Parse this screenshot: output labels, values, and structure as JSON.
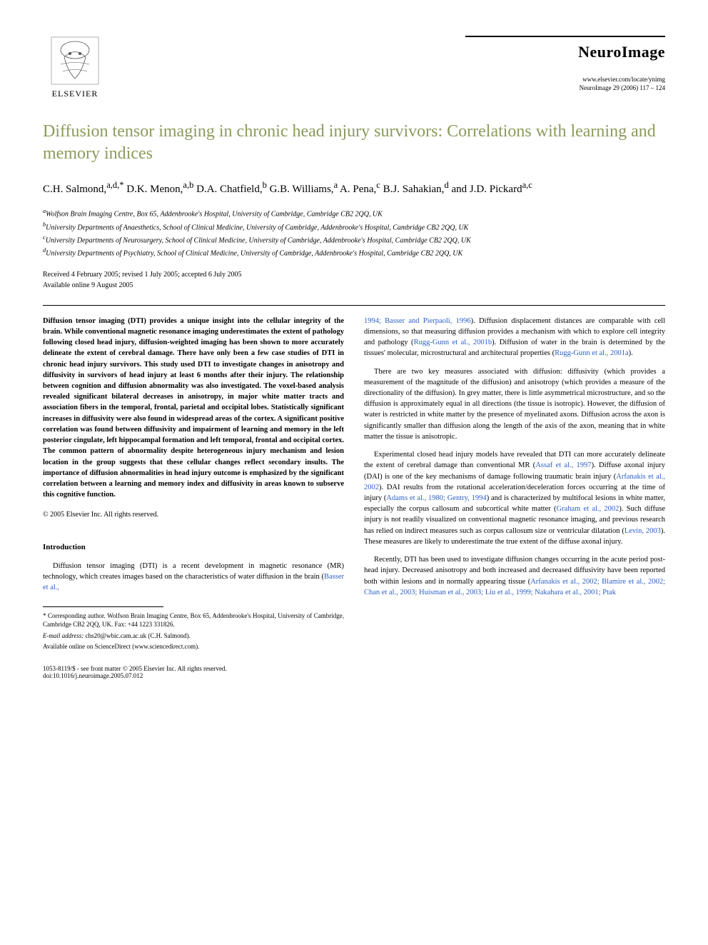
{
  "publisher": {
    "name": "ELSEVIER"
  },
  "journal": {
    "name": "NeuroImage",
    "url": "www.elsevier.com/locate/ynimg",
    "citation": "NeuroImage 29 (2006) 117 – 124"
  },
  "article": {
    "title": "Diffusion tensor imaging in chronic head injury survivors: Correlations with learning and memory indices",
    "authors_html": "C.H. Salmond,<sup>a,d,*</sup> D.K. Menon,<sup>a,b</sup> D.A. Chatfield,<sup>b</sup> G.B. Williams,<sup>a</sup> A. Pena,<sup>c</sup> B.J. Sahakian,<sup>d</sup> and J.D. Pickard<sup>a,c</sup>",
    "affiliations": {
      "a": "Wolfson Brain Imaging Centre, Box 65, Addenbrooke's Hospital, University of Cambridge, Cambridge CB2 2QQ, UK",
      "b": "University Departments of Anaesthetics, School of Clinical Medicine, University of Cambridge, Addenbrooke's Hospital, Cambridge CB2 2QQ, UK",
      "c": "University Departments of Neurosurgery, School of Clinical Medicine, University of Cambridge, Addenbrooke's Hospital, Cambridge CB2 2QQ, UK",
      "d": "University Departments of Psychiatry, School of Clinical Medicine, University of Cambridge, Addenbrooke's Hospital, Cambridge CB2 2QQ, UK"
    },
    "dates": {
      "received": "Received 4 February 2005; revised 1 July 2005; accepted 6 July 2005",
      "available": "Available online 9 August 2005"
    },
    "abstract": "Diffusion tensor imaging (DTI) provides a unique insight into the cellular integrity of the brain. While conventional magnetic resonance imaging underestimates the extent of pathology following closed head injury, diffusion-weighted imaging has been shown to more accurately delineate the extent of cerebral damage. There have only been a few case studies of DTI in chronic head injury survivors. This study used DTI to investigate changes in anisotropy and diffusivity in survivors of head injury at least 6 months after their injury. The relationship between cognition and diffusion abnormality was also investigated. The voxel-based analysis revealed significant bilateral decreases in anisotropy, in major white matter tracts and association fibers in the temporal, frontal, parietal and occipital lobes. Statistically significant increases in diffusivity were also found in widespread areas of the cortex. A significant positive correlation was found between diffusivity and impairment of learning and memory in the left posterior cingulate, left hippocampal formation and left temporal, frontal and occipital cortex. The common pattern of abnormality despite heterogeneous injury mechanism and lesion location in the group suggests that these cellular changes reflect secondary insults. The importance of diffusion abnormalities in head injury outcome is emphasized by the significant correlation between a learning and memory index and diffusivity in areas known to subserve this cognitive function.",
    "copyright_abstract": "© 2005 Elsevier Inc. All rights reserved.",
    "intro_heading": "Introduction",
    "intro_p1_prefix": "Diffusion tensor imaging (DTI) is a recent development in magnetic resonance (MR) technology, which creates images based on the characteristics of water diffusion in the brain (",
    "intro_p1_ref": "Basser et al.,",
    "col2_p1_ref1": "1994; Basser and Pierpaoli, 1996",
    "col2_p1_mid1": "). Diffusion displacement distances are comparable with cell dimensions, so that measuring diffusion provides a mechanism with which to explore cell integrity and pathology (",
    "col2_p1_ref2": "Rugg-Gunn et al., 2001b",
    "col2_p1_mid2": "). Diffusion of water in the brain is determined by the tissues' molecular, microstructural and architectural properties (",
    "col2_p1_ref3": "Rugg-Gunn et al., 2001a",
    "col2_p1_end": ").",
    "col2_p2": "There are two key measures associated with diffusion: diffusivity (which provides a measurement of the magnitude of the diffusion) and anisotropy (which provides a measure of the directionality of the diffusion). In grey matter, there is little asymmetrical microstructure, and so the diffusion is approximately equal in all directions (the tissue is isotropic). However, the diffusion of water is restricted in white matter by the presence of myelinated axons. Diffusion across the axon is significantly smaller than diffusion along the length of the axis of the axon, meaning that in white matter the tissue is anisotropic.",
    "col2_p3_a": "Experimental closed head injury models have revealed that DTI can more accurately delineate the extent of cerebral damage than conventional MR (",
    "col2_p3_ref1": "Assaf et al., 1997",
    "col2_p3_b": "). Diffuse axonal injury (DAI) is one of the key mechanisms of damage following traumatic brain injury (",
    "col2_p3_ref2": "Arfanakis et al., 2002",
    "col2_p3_c": "). DAI results from the rotational acceleration/deceleration forces occurring at the time of injury (",
    "col2_p3_ref3": "Adams et al., 1980; Gentry, 1994",
    "col2_p3_d": ") and is characterized by multifocal lesions in white matter, especially the corpus callosum and subcortical white matter (",
    "col2_p3_ref4": "Graham et al., 2002",
    "col2_p3_e": "). Such diffuse injury is not readily visualized on conventional magnetic resonance imaging, and previous research has relied on indirect measures such as corpus callosum size or ventricular dilatation (",
    "col2_p3_ref5": "Levin, 2003",
    "col2_p3_f": "). These measures are likely to underestimate the true extent of the diffuse axonal injury.",
    "col2_p4_a": "Recently, DTI has been used to investigate diffusion changes occurring in the acute period post-head injury. Decreased anisotropy and both increased and decreased diffusivity have been reported both within lesions and in normally appearing tissue (",
    "col2_p4_ref": "Arfanakis et al., 2002; Blamire et al., 2002; Chan et al., 2003; Huisman et al., 2003; Liu et al., 1999; Nakahara et al., 2001; Ptak"
  },
  "footnotes": {
    "corresponding": "* Corresponding author. Wolfson Brain Imaging Centre, Box 65, Addenbrooke's Hospital, University of Cambridge, Cambridge CB2 2QQ, UK. Fax: +44 1223 331826.",
    "email_label": "E-mail address:",
    "email": "chs20@wbic.cam.ac.uk (C.H. Salmond).",
    "availability": "Available online on ScienceDirect (www.sciencedirect.com)."
  },
  "bottom": {
    "left_line1": "1053-8119/$ - see front matter © 2005 Elsevier Inc. All rights reserved.",
    "left_line2": "doi:10.1016/j.neuroimage.2005.07.012"
  }
}
